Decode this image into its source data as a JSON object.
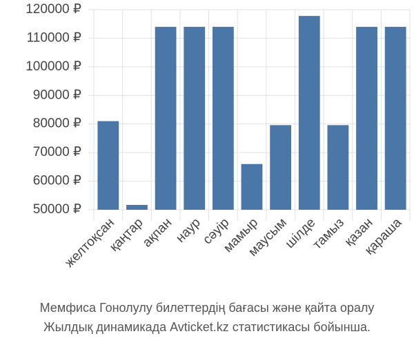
{
  "chart_data": {
    "type": "bar",
    "categories": [
      "желтоқсан",
      "қаңтар",
      "ақпан",
      "наур",
      "сәуір",
      "мамыр",
      "маусым",
      "шілде",
      "тамыз",
      "қазан",
      "қараша"
    ],
    "values": [
      81000,
      51700,
      114000,
      114000,
      114000,
      66000,
      79600,
      117800,
      79600,
      114000,
      114000
    ],
    "color": "#4a76a8",
    "ylim": [
      50000,
      120000
    ],
    "yticks": [
      {
        "value": 50000,
        "label": "50000 ₽"
      },
      {
        "value": 60000,
        "label": "60000 ₽"
      },
      {
        "value": 70000,
        "label": "70000 ₽"
      },
      {
        "value": 80000,
        "label": "80000 ₽"
      },
      {
        "value": 90000,
        "label": "90000 ₽"
      },
      {
        "value": 100000,
        "label": "100000 ₽"
      },
      {
        "value": 110000,
        "label": "110000 ₽"
      },
      {
        "value": 120000,
        "label": "120000 ₽"
      }
    ],
    "grid": true,
    "caption": [
      "Мемфиса Гонолулу билеттердің бағасы және қайта оралу",
      "Жылдық динамикада Avticket.kz статистикасы бойынша."
    ]
  }
}
